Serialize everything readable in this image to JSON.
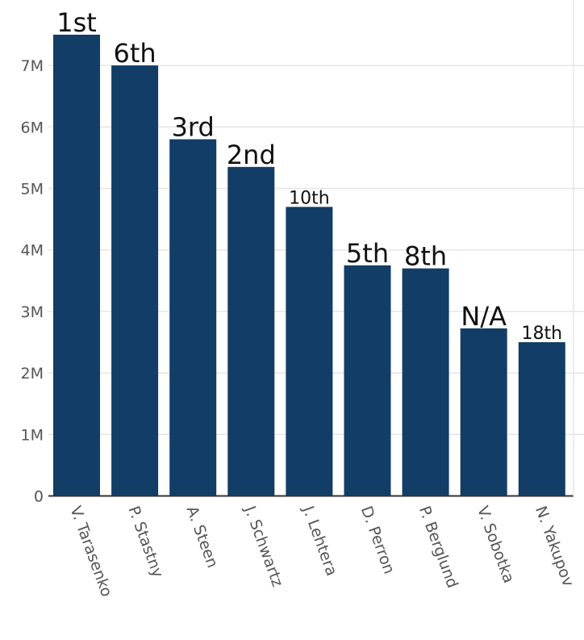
{
  "chart_data": {
    "type": "bar",
    "title": "",
    "xlabel": "",
    "ylabel": "",
    "categories": [
      "V. Tarasenko",
      "P. Stastny",
      "A. Steen",
      "J. Schwartz",
      "J. Lehtera",
      "D. Perron",
      "P. Berglund",
      "V. Sobotka",
      "N. Yakupov"
    ],
    "values": [
      7500000,
      7000000,
      5800000,
      5350000,
      4700000,
      3750000,
      3700000,
      2725000,
      2500000
    ],
    "data_labels": [
      "1st",
      "6th",
      "3rd",
      "2nd",
      "10th",
      "5th",
      "8th",
      "N/A",
      "18th"
    ],
    "ylim": [
      0,
      7800000
    ],
    "yticks": [
      0,
      1000000,
      2000000,
      3000000,
      4000000,
      5000000,
      6000000,
      7000000
    ],
    "ytick_labels": [
      "0",
      "1M",
      "2M",
      "3M",
      "4M",
      "5M",
      "6M",
      "7M"
    ],
    "grid": true,
    "bar_color": "#123d66"
  }
}
